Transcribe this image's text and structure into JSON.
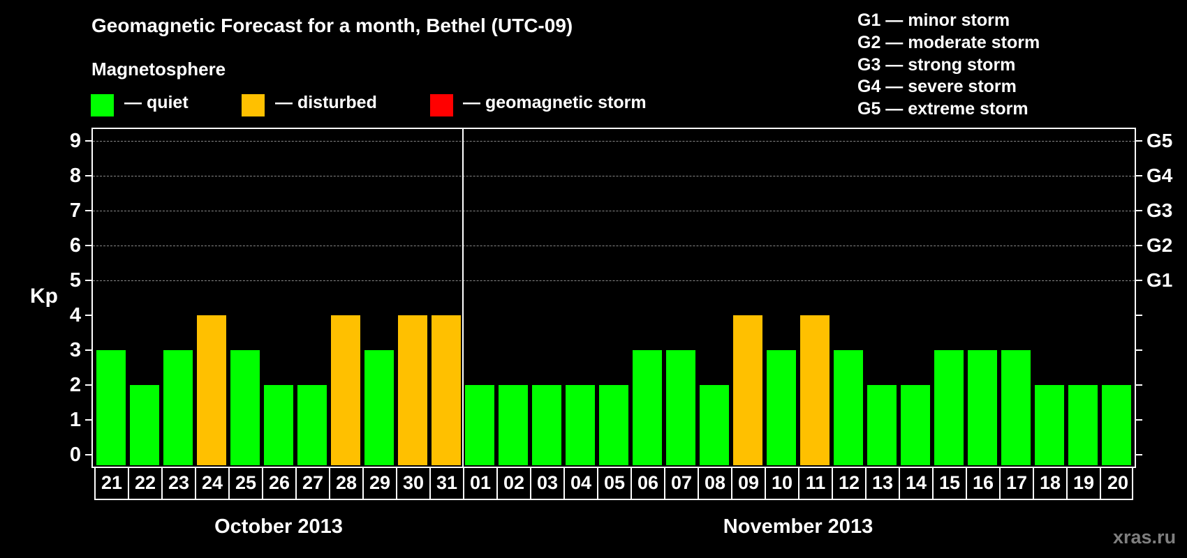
{
  "title": "Geomagnetic Forecast for a month, Bethel (UTC-09)",
  "legend": {
    "heading": "Magnetosphere",
    "items": [
      {
        "label": "— quiet",
        "color": "#00ff00"
      },
      {
        "label": "— disturbed",
        "color": "#ffc000"
      },
      {
        "label": "— geomagnetic storm",
        "color": "#ff0000"
      }
    ],
    "storm_scale": [
      "G1 — minor storm",
      "G2 — moderate storm",
      "G3 — strong storm",
      "G4 — severe storm",
      "G5 — extreme storm"
    ]
  },
  "axis": {
    "ylabel": "Kp",
    "yticks": [
      "0",
      "1",
      "2",
      "3",
      "4",
      "5",
      "6",
      "7",
      "8",
      "9"
    ],
    "right_labels": {
      "5": "G1",
      "6": "G2",
      "7": "G3",
      "8": "G4",
      "9": "G5"
    }
  },
  "months": [
    {
      "label": "October 2013",
      "start_index": 0,
      "count": 11
    },
    {
      "label": "November 2013",
      "start_index": 11,
      "count": 20
    }
  ],
  "watermark": "xras.ru",
  "colors": {
    "quiet": "#00ff00",
    "disturbed": "#ffc000",
    "storm": "#ff0000",
    "background": "#000000",
    "grid": "#8a8a8a"
  },
  "chart_data": {
    "type": "bar",
    "title": "Geomagnetic Forecast for a month, Bethel (UTC-09)",
    "xlabel": "",
    "ylabel": "Kp",
    "ylim": [
      0,
      9
    ],
    "grid": true,
    "grid_lines_at": [
      5,
      6,
      7,
      8,
      9
    ],
    "categories": [
      "21",
      "22",
      "23",
      "24",
      "25",
      "26",
      "27",
      "28",
      "29",
      "30",
      "31",
      "01",
      "02",
      "03",
      "04",
      "05",
      "06",
      "07",
      "08",
      "09",
      "10",
      "11",
      "12",
      "13",
      "14",
      "15",
      "16",
      "17",
      "18",
      "19",
      "20"
    ],
    "category_groups": [
      {
        "label": "October 2013",
        "categories": [
          "21",
          "22",
          "23",
          "24",
          "25",
          "26",
          "27",
          "28",
          "29",
          "30",
          "31"
        ]
      },
      {
        "label": "November 2013",
        "categories": [
          "01",
          "02",
          "03",
          "04",
          "05",
          "06",
          "07",
          "08",
          "09",
          "10",
          "11",
          "12",
          "13",
          "14",
          "15",
          "16",
          "17",
          "18",
          "19",
          "20"
        ]
      }
    ],
    "values": [
      3,
      2,
      3,
      4,
      3,
      2,
      2,
      4,
      3,
      4,
      4,
      2,
      2,
      2,
      2,
      2,
      3,
      3,
      2,
      4,
      3,
      4,
      3,
      2,
      2,
      3,
      3,
      3,
      2,
      2,
      2
    ],
    "status": [
      "quiet",
      "quiet",
      "quiet",
      "disturbed",
      "quiet",
      "quiet",
      "quiet",
      "disturbed",
      "quiet",
      "disturbed",
      "disturbed",
      "quiet",
      "quiet",
      "quiet",
      "quiet",
      "quiet",
      "quiet",
      "quiet",
      "quiet",
      "disturbed",
      "quiet",
      "disturbed",
      "quiet",
      "quiet",
      "quiet",
      "quiet",
      "quiet",
      "quiet",
      "quiet",
      "quiet",
      "quiet"
    ],
    "legend": [
      "quiet",
      "disturbed",
      "geomagnetic storm"
    ],
    "legend_position": "top",
    "secondary_yaxis": {
      "5": "G1",
      "6": "G2",
      "7": "G3",
      "8": "G4",
      "9": "G5"
    }
  }
}
